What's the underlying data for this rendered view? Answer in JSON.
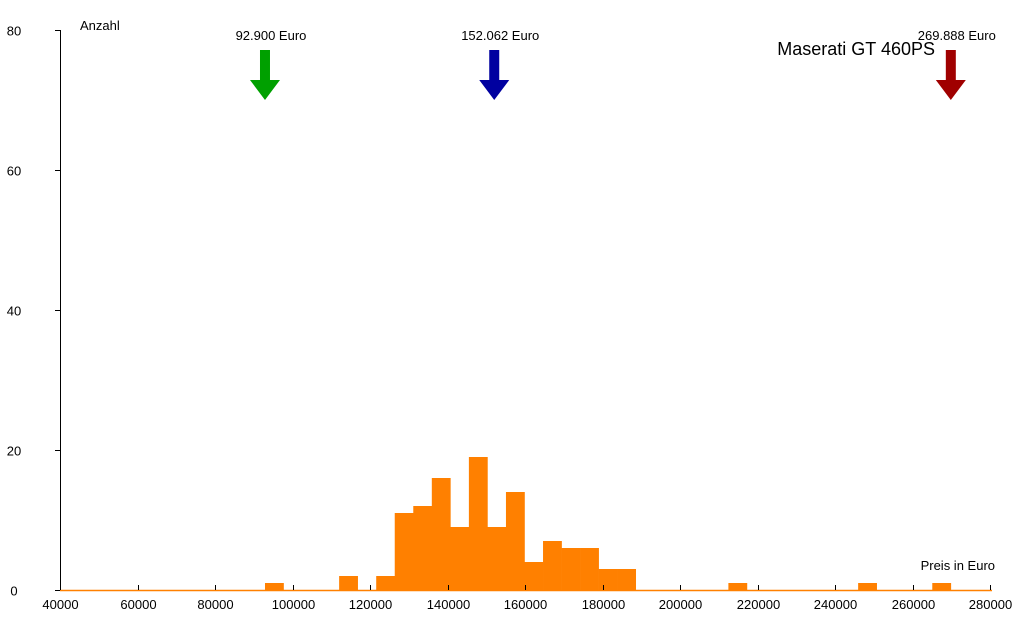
{
  "chart_data": {
    "type": "bar",
    "title": "Maserati GT 460PS",
    "xlabel": "Preis in Euro",
    "ylabel": "Anzahl",
    "xlim": [
      40000,
      280000
    ],
    "ylim": [
      0,
      80
    ],
    "x_ticks": [
      "40000",
      "60000",
      "80000",
      "100000",
      "120000",
      "140000",
      "160000",
      "180000",
      "200000",
      "220000",
      "240000",
      "260000",
      "280000"
    ],
    "y_ticks": [
      "0",
      "20",
      "40",
      "60",
      "80"
    ],
    "grid": false,
    "bin_start": 92900,
    "bin_end": 269888,
    "counts": [
      1,
      0,
      0,
      0,
      2,
      0,
      2,
      11,
      12,
      16,
      9,
      19,
      9,
      14,
      4,
      7,
      6,
      6,
      3,
      3,
      0,
      0,
      0,
      0,
      0,
      1,
      0,
      0,
      0,
      0,
      0,
      0,
      1,
      0,
      0,
      0,
      1
    ],
    "bar_color": "#ff8000",
    "markers": [
      {
        "value": 92900,
        "label": "92.900 Euro",
        "color": "#00a000"
      },
      {
        "value": 152062,
        "label": "152.062 Euro",
        "color": "#0000a0"
      },
      {
        "value": 269888,
        "label": "269.888 Euro",
        "color": "#a00000"
      }
    ]
  }
}
